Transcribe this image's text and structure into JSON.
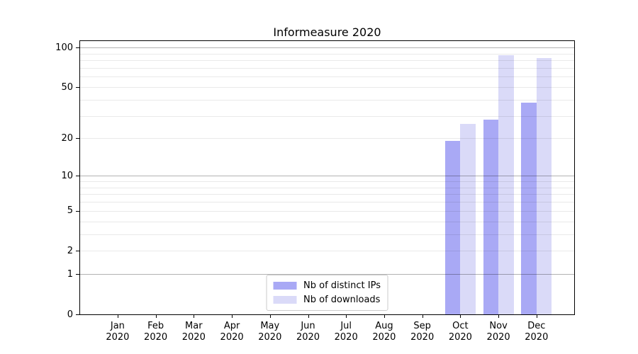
{
  "title": "Informeasure 2020",
  "chart_data": {
    "type": "bar",
    "title": "Informeasure 2020",
    "year": "2020",
    "months": [
      "Jan",
      "Feb",
      "Mar",
      "Apr",
      "May",
      "Jun",
      "Jul",
      "Aug",
      "Sep",
      "Oct",
      "Nov",
      "Dec"
    ],
    "series": [
      {
        "key": "distinct-ips",
        "name": "Nb of distinct IPs",
        "color": "#a9a9f5",
        "values": [
          0,
          0,
          0,
          0,
          0,
          0,
          0,
          0,
          0,
          19,
          28,
          38
        ]
      },
      {
        "key": "downloads",
        "name": "Nb of downloads",
        "color": "#dadaf8",
        "values": [
          0,
          0,
          0,
          0,
          0,
          0,
          0,
          0,
          0,
          26,
          88,
          83
        ]
      }
    ],
    "y_axis": {
      "scale": "log10(1+v)",
      "ticks": [
        0,
        1,
        2,
        5,
        10,
        20,
        50,
        100
      ],
      "major_grid": [
        1,
        10,
        100
      ],
      "minor_grid": [
        2,
        3,
        4,
        5,
        6,
        7,
        8,
        9,
        20,
        30,
        40,
        50,
        60,
        70,
        80,
        90
      ],
      "top_value": 112
    },
    "x_axis": {
      "label_line_2": "2020"
    },
    "legend": {
      "position": "lower center"
    },
    "colors": {
      "bar_distinct_ips": "#a9a9f5",
      "bar_downloads": "#dadaf8",
      "spine": "#000000",
      "major_grid": "rgba(0,0,0,0.30)",
      "minor_grid": "rgba(0,0,0,0.085)",
      "text": "#000000"
    }
  }
}
